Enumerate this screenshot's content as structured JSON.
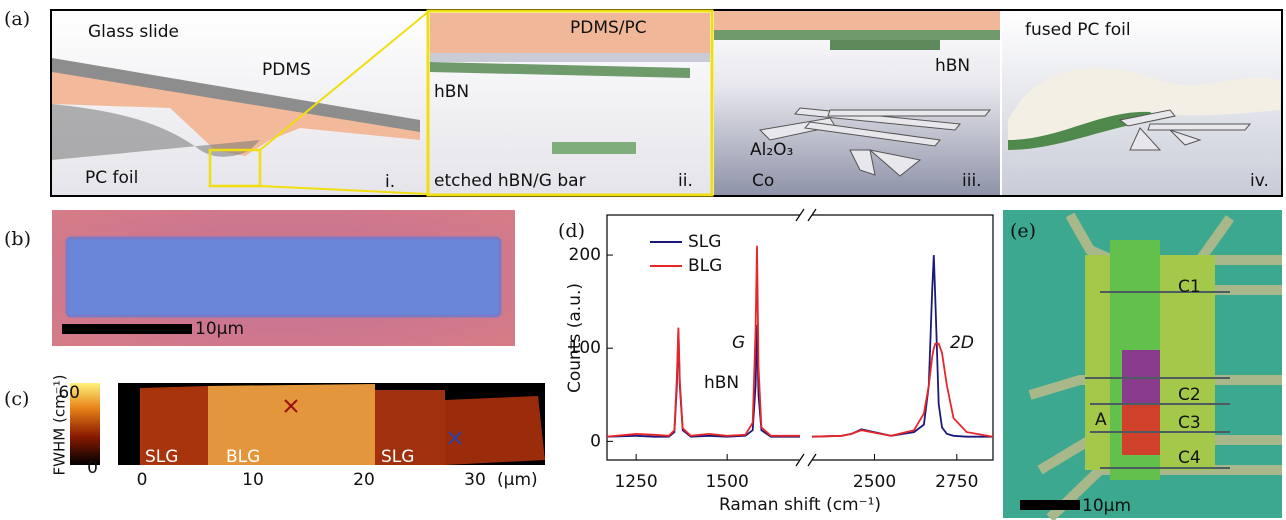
{
  "panels": {
    "a": {
      "label": "(a)",
      "glass_slide": "Glass slide",
      "pdms": "PDMS",
      "pc_foil": "PC foil",
      "i": "i.",
      "pdms_pc": "PDMS/PC",
      "hbn_top": "hBN",
      "etched": "etched hBN/G bar",
      "ii": "ii.",
      "hbn_iii": "hBN",
      "al2o3": "Al₂O₃",
      "co": "Co",
      "iii": "iii.",
      "fused": "fused PC foil",
      "iv": "iv."
    },
    "b": {
      "label": "(b)",
      "scale": "10µm"
    },
    "c": {
      "label": "(c)",
      "colorbar_label": "FWHM (cm⁻¹)",
      "colorbar_top": "60",
      "colorbar_bottom": "0",
      "xticks": [
        "0",
        "10",
        "20",
        "30"
      ],
      "unit": "(µm)",
      "regions": [
        "SLG",
        "BLG",
        "SLG"
      ]
    },
    "e": {
      "label": "(e)",
      "contacts": [
        "C1",
        "C2",
        "C3",
        "C4"
      ],
      "region": "A",
      "scale": "10µm"
    }
  },
  "chart_data": {
    "type": "line",
    "label": "(d)",
    "x_label": "Raman shift (cm⁻¹)",
    "y_label": "Counts (a.u.)",
    "x": [
      1170,
      1250,
      1300,
      1340,
      1355,
      1362,
      1366,
      1370,
      1378,
      1400,
      1450,
      1500,
      1550,
      1570,
      1578,
      1582,
      1586,
      1594,
      1620,
      1700,
      2000,
      2310,
      2400,
      2430,
      2460,
      2550,
      2620,
      2650,
      2665,
      2675,
      2680,
      2685,
      2695,
      2705,
      2720,
      2740,
      2780,
      2860
    ],
    "series": [
      {
        "name": "SLG",
        "color": "#1c1a78",
        "values": [
          5,
          6,
          5,
          5,
          10,
          60,
          118,
          60,
          12,
          5,
          6,
          5,
          6,
          12,
          60,
          125,
          50,
          12,
          5,
          5,
          null,
          5,
          6,
          8,
          13,
          6,
          10,
          18,
          60,
          160,
          200,
          150,
          40,
          15,
          8,
          6,
          5,
          5
        ]
      },
      {
        "name": "BLG",
        "color": "#e8262a",
        "values": [
          5,
          8,
          7,
          6,
          12,
          70,
          122,
          65,
          14,
          6,
          8,
          6,
          7,
          20,
          120,
          210,
          80,
          15,
          6,
          6,
          null,
          5,
          6,
          8,
          12,
          6,
          12,
          30,
          60,
          90,
          100,
          105,
          105,
          95,
          60,
          25,
          10,
          5
        ]
      }
    ],
    "xlim": [
      1170,
      2860
    ],
    "x_break": [
      1700,
      2310
    ],
    "xticks": [
      1250,
      1500,
      2500,
      2750
    ],
    "ylim": [
      -20,
      243
    ],
    "yticks": [
      0,
      100,
      200
    ],
    "annotations": {
      "hbn": "hBN",
      "g": "G",
      "twod": "2D"
    }
  }
}
